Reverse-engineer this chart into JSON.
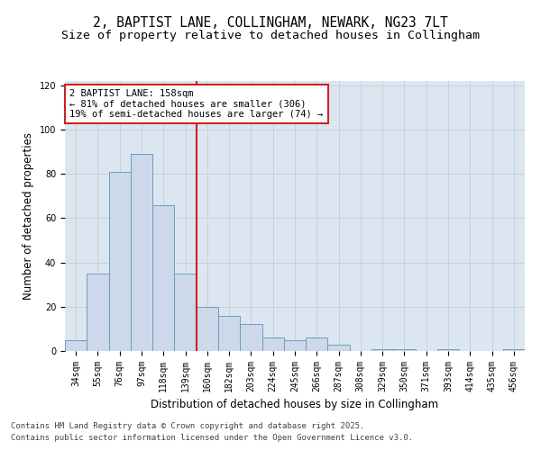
{
  "title_line1": "2, BAPTIST LANE, COLLINGHAM, NEWARK, NG23 7LT",
  "title_line2": "Size of property relative to detached houses in Collingham",
  "xlabel": "Distribution of detached houses by size in Collingham",
  "ylabel": "Number of detached properties",
  "categories": [
    "34sqm",
    "55sqm",
    "76sqm",
    "97sqm",
    "118sqm",
    "139sqm",
    "160sqm",
    "182sqm",
    "203sqm",
    "224sqm",
    "245sqm",
    "266sqm",
    "287sqm",
    "308sqm",
    "329sqm",
    "350sqm",
    "371sqm",
    "393sqm",
    "414sqm",
    "435sqm",
    "456sqm"
  ],
  "values": [
    5,
    35,
    81,
    89,
    66,
    35,
    20,
    16,
    12,
    6,
    5,
    6,
    3,
    0,
    1,
    1,
    0,
    1,
    0,
    0,
    1
  ],
  "bar_color": "#cdd9ea",
  "bar_edge_color": "#6b9dc2",
  "highlight_index": 6,
  "highlight_line_color": "#cc2222",
  "ylim": [
    0,
    122
  ],
  "yticks": [
    0,
    20,
    40,
    60,
    80,
    100,
    120
  ],
  "annotation_text": "2 BAPTIST LANE: 158sqm\n← 81% of detached houses are smaller (306)\n19% of semi-detached houses are larger (74) →",
  "annotation_box_color": "#ffffff",
  "annotation_box_edge": "#cc2222",
  "grid_color": "#c8d0dc",
  "background_color": "#dce6f0",
  "footer_line1": "Contains HM Land Registry data © Crown copyright and database right 2025.",
  "footer_line2": "Contains public sector information licensed under the Open Government Licence v3.0.",
  "title_fontsize": 10.5,
  "subtitle_fontsize": 9.5,
  "xlabel_fontsize": 8.5,
  "ylabel_fontsize": 8.5,
  "tick_fontsize": 7,
  "footer_fontsize": 6.5,
  "ann_fontsize": 7.5
}
